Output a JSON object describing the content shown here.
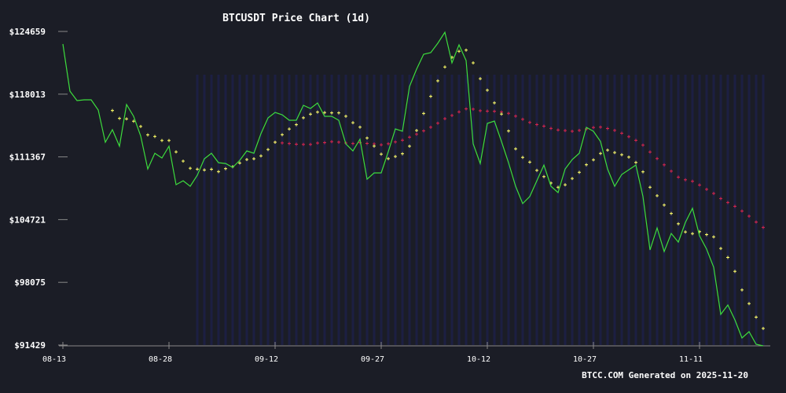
{
  "chart_data": {
    "type": "line",
    "title": "BTCUSDT Price Chart (1d)",
    "footer": "BTCC.COM Generated on 2025-11-20",
    "x_start": "2025-08-13",
    "x_end": "2025-11-21",
    "x_ticks": [
      "08-13",
      "08-28",
      "09-12",
      "09-27",
      "10-12",
      "10-27",
      "11-11"
    ],
    "y_ticks": [
      "$91429",
      "$98075",
      "$104721",
      "$111367",
      "$118013",
      "$124659"
    ],
    "ylim": [
      91429,
      124659
    ],
    "grid": false,
    "colors": {
      "background": "#1b1d26",
      "price": "#3ddc3d",
      "sma_short": "#ffff66",
      "sma_long": "#d9264a",
      "axis": "#888888",
      "stripes": "#1c2150"
    },
    "series": [
      {
        "kind": "price",
        "values": [
          123327,
          118330,
          117330,
          117414,
          117414,
          116331,
          112917,
          114249,
          112500,
          116914,
          115665,
          113583,
          110085,
          111751,
          111251,
          112500,
          108419,
          108836,
          108253,
          109419,
          111168,
          111751,
          110751,
          110668,
          110252,
          111001,
          112000,
          111751,
          113833,
          115498,
          116081,
          115831,
          115248,
          115248,
          116831,
          116498,
          117081,
          115665,
          115665,
          115248,
          112750,
          112000,
          113250,
          109002,
          109669,
          109669,
          111917,
          114332,
          114082,
          118829,
          120662,
          122244,
          122410,
          123410,
          124576,
          121328,
          123243,
          121578,
          112750,
          110668,
          114915,
          115165,
          113000,
          110751,
          108253,
          106421,
          107170,
          108836,
          110501,
          108253,
          107587,
          110085,
          111084,
          111751,
          114499,
          114082,
          113000,
          110085,
          108253,
          109502,
          110002,
          110501,
          107170,
          101507,
          103839,
          101341,
          103256,
          102340,
          104422,
          105921,
          103006,
          101590,
          99675,
          94678,
          95678,
          94095,
          92180,
          92846,
          91514,
          91347
        ]
      },
      {
        "kind": "sma",
        "window": 7
      },
      {
        "kind": "sma",
        "window": 30
      }
    ]
  }
}
